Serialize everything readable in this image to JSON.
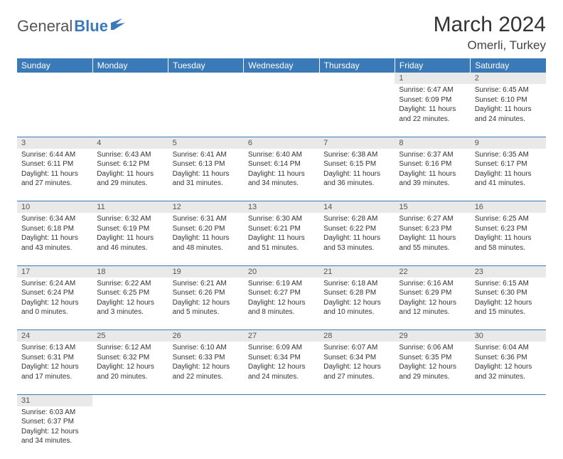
{
  "logo": {
    "part1": "General",
    "part2": "Blue"
  },
  "title": "March 2024",
  "location": "Omerli, Turkey",
  "colors": {
    "header_bg": "#3a7ab8",
    "header_text": "#ffffff",
    "daynum_bg": "#e9e9e9",
    "border": "#3a7ab8",
    "text": "#333333",
    "logo_blue": "#3a7ab8",
    "logo_grey": "#555555"
  },
  "weekdays": [
    "Sunday",
    "Monday",
    "Tuesday",
    "Wednesday",
    "Thursday",
    "Friday",
    "Saturday"
  ],
  "weeks": [
    [
      null,
      null,
      null,
      null,
      null,
      {
        "n": "1",
        "sr": "Sunrise: 6:47 AM",
        "ss": "Sunset: 6:09 PM",
        "d1": "Daylight: 11 hours",
        "d2": "and 22 minutes."
      },
      {
        "n": "2",
        "sr": "Sunrise: 6:45 AM",
        "ss": "Sunset: 6:10 PM",
        "d1": "Daylight: 11 hours",
        "d2": "and 24 minutes."
      }
    ],
    [
      {
        "n": "3",
        "sr": "Sunrise: 6:44 AM",
        "ss": "Sunset: 6:11 PM",
        "d1": "Daylight: 11 hours",
        "d2": "and 27 minutes."
      },
      {
        "n": "4",
        "sr": "Sunrise: 6:43 AM",
        "ss": "Sunset: 6:12 PM",
        "d1": "Daylight: 11 hours",
        "d2": "and 29 minutes."
      },
      {
        "n": "5",
        "sr": "Sunrise: 6:41 AM",
        "ss": "Sunset: 6:13 PM",
        "d1": "Daylight: 11 hours",
        "d2": "and 31 minutes."
      },
      {
        "n": "6",
        "sr": "Sunrise: 6:40 AM",
        "ss": "Sunset: 6:14 PM",
        "d1": "Daylight: 11 hours",
        "d2": "and 34 minutes."
      },
      {
        "n": "7",
        "sr": "Sunrise: 6:38 AM",
        "ss": "Sunset: 6:15 PM",
        "d1": "Daylight: 11 hours",
        "d2": "and 36 minutes."
      },
      {
        "n": "8",
        "sr": "Sunrise: 6:37 AM",
        "ss": "Sunset: 6:16 PM",
        "d1": "Daylight: 11 hours",
        "d2": "and 39 minutes."
      },
      {
        "n": "9",
        "sr": "Sunrise: 6:35 AM",
        "ss": "Sunset: 6:17 PM",
        "d1": "Daylight: 11 hours",
        "d2": "and 41 minutes."
      }
    ],
    [
      {
        "n": "10",
        "sr": "Sunrise: 6:34 AM",
        "ss": "Sunset: 6:18 PM",
        "d1": "Daylight: 11 hours",
        "d2": "and 43 minutes."
      },
      {
        "n": "11",
        "sr": "Sunrise: 6:32 AM",
        "ss": "Sunset: 6:19 PM",
        "d1": "Daylight: 11 hours",
        "d2": "and 46 minutes."
      },
      {
        "n": "12",
        "sr": "Sunrise: 6:31 AM",
        "ss": "Sunset: 6:20 PM",
        "d1": "Daylight: 11 hours",
        "d2": "and 48 minutes."
      },
      {
        "n": "13",
        "sr": "Sunrise: 6:30 AM",
        "ss": "Sunset: 6:21 PM",
        "d1": "Daylight: 11 hours",
        "d2": "and 51 minutes."
      },
      {
        "n": "14",
        "sr": "Sunrise: 6:28 AM",
        "ss": "Sunset: 6:22 PM",
        "d1": "Daylight: 11 hours",
        "d2": "and 53 minutes."
      },
      {
        "n": "15",
        "sr": "Sunrise: 6:27 AM",
        "ss": "Sunset: 6:23 PM",
        "d1": "Daylight: 11 hours",
        "d2": "and 55 minutes."
      },
      {
        "n": "16",
        "sr": "Sunrise: 6:25 AM",
        "ss": "Sunset: 6:23 PM",
        "d1": "Daylight: 11 hours",
        "d2": "and 58 minutes."
      }
    ],
    [
      {
        "n": "17",
        "sr": "Sunrise: 6:24 AM",
        "ss": "Sunset: 6:24 PM",
        "d1": "Daylight: 12 hours",
        "d2": "and 0 minutes."
      },
      {
        "n": "18",
        "sr": "Sunrise: 6:22 AM",
        "ss": "Sunset: 6:25 PM",
        "d1": "Daylight: 12 hours",
        "d2": "and 3 minutes."
      },
      {
        "n": "19",
        "sr": "Sunrise: 6:21 AM",
        "ss": "Sunset: 6:26 PM",
        "d1": "Daylight: 12 hours",
        "d2": "and 5 minutes."
      },
      {
        "n": "20",
        "sr": "Sunrise: 6:19 AM",
        "ss": "Sunset: 6:27 PM",
        "d1": "Daylight: 12 hours",
        "d2": "and 8 minutes."
      },
      {
        "n": "21",
        "sr": "Sunrise: 6:18 AM",
        "ss": "Sunset: 6:28 PM",
        "d1": "Daylight: 12 hours",
        "d2": "and 10 minutes."
      },
      {
        "n": "22",
        "sr": "Sunrise: 6:16 AM",
        "ss": "Sunset: 6:29 PM",
        "d1": "Daylight: 12 hours",
        "d2": "and 12 minutes."
      },
      {
        "n": "23",
        "sr": "Sunrise: 6:15 AM",
        "ss": "Sunset: 6:30 PM",
        "d1": "Daylight: 12 hours",
        "d2": "and 15 minutes."
      }
    ],
    [
      {
        "n": "24",
        "sr": "Sunrise: 6:13 AM",
        "ss": "Sunset: 6:31 PM",
        "d1": "Daylight: 12 hours",
        "d2": "and 17 minutes."
      },
      {
        "n": "25",
        "sr": "Sunrise: 6:12 AM",
        "ss": "Sunset: 6:32 PM",
        "d1": "Daylight: 12 hours",
        "d2": "and 20 minutes."
      },
      {
        "n": "26",
        "sr": "Sunrise: 6:10 AM",
        "ss": "Sunset: 6:33 PM",
        "d1": "Daylight: 12 hours",
        "d2": "and 22 minutes."
      },
      {
        "n": "27",
        "sr": "Sunrise: 6:09 AM",
        "ss": "Sunset: 6:34 PM",
        "d1": "Daylight: 12 hours",
        "d2": "and 24 minutes."
      },
      {
        "n": "28",
        "sr": "Sunrise: 6:07 AM",
        "ss": "Sunset: 6:34 PM",
        "d1": "Daylight: 12 hours",
        "d2": "and 27 minutes."
      },
      {
        "n": "29",
        "sr": "Sunrise: 6:06 AM",
        "ss": "Sunset: 6:35 PM",
        "d1": "Daylight: 12 hours",
        "d2": "and 29 minutes."
      },
      {
        "n": "30",
        "sr": "Sunrise: 6:04 AM",
        "ss": "Sunset: 6:36 PM",
        "d1": "Daylight: 12 hours",
        "d2": "and 32 minutes."
      }
    ],
    [
      {
        "n": "31",
        "sr": "Sunrise: 6:03 AM",
        "ss": "Sunset: 6:37 PM",
        "d1": "Daylight: 12 hours",
        "d2": "and 34 minutes."
      },
      null,
      null,
      null,
      null,
      null,
      null
    ]
  ]
}
